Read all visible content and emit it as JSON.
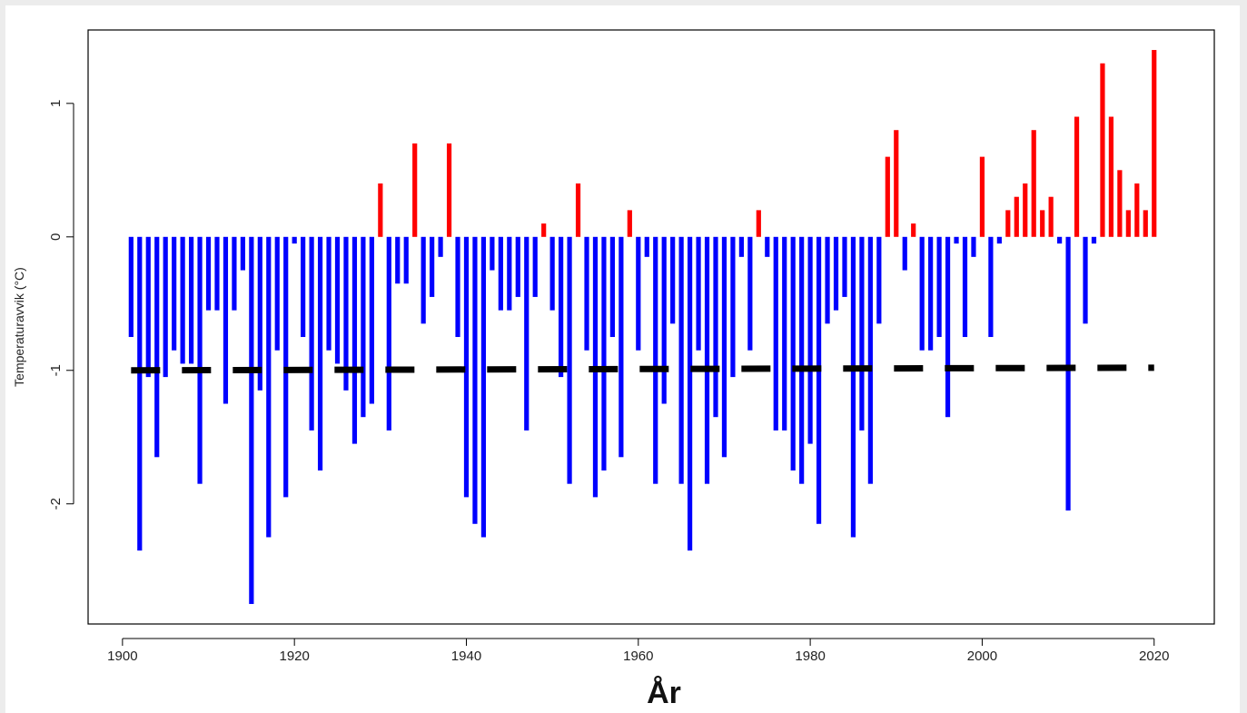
{
  "chart_data": {
    "type": "bar",
    "title": "",
    "xlabel": "År",
    "ylabel": "Temperaturavvik (°C)",
    "xlim": [
      1896,
      2027
    ],
    "ylim": [
      -2.9,
      1.55
    ],
    "xticks": [
      1900,
      1920,
      1940,
      1960,
      1980,
      2000,
      2020
    ],
    "xtick_labels": [
      "1900",
      "1920",
      "1940",
      "1960",
      "1980",
      "2000",
      "2020"
    ],
    "yticks": [
      -2,
      -1,
      0,
      1
    ],
    "ytick_labels": [
      "-2",
      "-1",
      "0",
      "1"
    ],
    "grid": false,
    "legend": "none",
    "colors": {
      "positive": "#ff0000",
      "negative": "#0000ff",
      "reference_line": "#000000"
    },
    "reference_line": {
      "style": "dashed",
      "y_start": -1.0,
      "y_end": -0.98,
      "x_start": 1901,
      "x_end": 2020
    },
    "x": [
      1901,
      1902,
      1903,
      1904,
      1905,
      1906,
      1907,
      1908,
      1909,
      1910,
      1911,
      1912,
      1913,
      1914,
      1915,
      1916,
      1917,
      1918,
      1919,
      1920,
      1921,
      1922,
      1923,
      1924,
      1925,
      1926,
      1927,
      1928,
      1929,
      1930,
      1931,
      1932,
      1933,
      1934,
      1935,
      1936,
      1937,
      1938,
      1939,
      1940,
      1941,
      1942,
      1943,
      1944,
      1945,
      1946,
      1947,
      1948,
      1949,
      1950,
      1951,
      1952,
      1953,
      1954,
      1955,
      1956,
      1957,
      1958,
      1959,
      1960,
      1961,
      1962,
      1963,
      1964,
      1965,
      1966,
      1967,
      1968,
      1969,
      1970,
      1971,
      1972,
      1973,
      1974,
      1975,
      1976,
      1977,
      1978,
      1979,
      1980,
      1981,
      1982,
      1983,
      1984,
      1985,
      1986,
      1987,
      1988,
      1989,
      1990,
      1991,
      1992,
      1993,
      1994,
      1995,
      1996,
      1997,
      1998,
      1999,
      2000,
      2001,
      2002,
      2003,
      2004,
      2005,
      2006,
      2007,
      2008,
      2009,
      2010,
      2011,
      2012,
      2013,
      2014,
      2015,
      2016,
      2017,
      2018,
      2019,
      2020
    ],
    "values": [
      -0.75,
      -2.35,
      -1.05,
      -1.65,
      -1.05,
      -0.85,
      -0.95,
      -0.95,
      -1.85,
      -0.55,
      -0.55,
      -1.25,
      -0.55,
      -0.25,
      -2.75,
      -1.15,
      -2.25,
      -0.85,
      -1.95,
      -0.05,
      -0.75,
      -1.45,
      -1.75,
      -0.85,
      -0.95,
      -1.15,
      -1.55,
      -1.35,
      -1.25,
      0.4,
      -1.45,
      -0.35,
      -0.35,
      0.7,
      -0.65,
      -0.45,
      -0.15,
      0.7,
      -0.75,
      -1.95,
      -2.15,
      -2.25,
      -0.25,
      -0.55,
      -0.55,
      -0.45,
      -1.45,
      -0.45,
      0.1,
      -0.55,
      -1.05,
      -1.85,
      0.4,
      -0.85,
      -1.95,
      -1.75,
      -0.75,
      -1.65,
      0.2,
      -0.85,
      -0.15,
      -1.85,
      -1.25,
      -0.65,
      -1.85,
      -2.35,
      -0.85,
      -1.85,
      -1.35,
      -1.65,
      -1.05,
      -0.15,
      -0.85,
      0.2,
      -0.15,
      -1.45,
      -1.45,
      -1.75,
      -1.85,
      -1.55,
      -2.15,
      -0.65,
      -0.55,
      -0.45,
      -2.25,
      -1.45,
      -1.85,
      -0.65,
      0.6,
      0.8,
      -0.25,
      0.1,
      -0.85,
      -0.85,
      -0.75,
      -1.35,
      -0.05,
      -0.75,
      -0.15,
      0.6,
      -0.75,
      -0.05,
      0.2,
      0.3,
      0.4,
      0.8,
      0.2,
      0.3,
      -0.05,
      -2.05,
      0.9,
      -0.65,
      -0.05,
      1.3,
      0.9,
      0.5,
      0.2,
      0.4,
      0.2,
      1.4
    ]
  }
}
